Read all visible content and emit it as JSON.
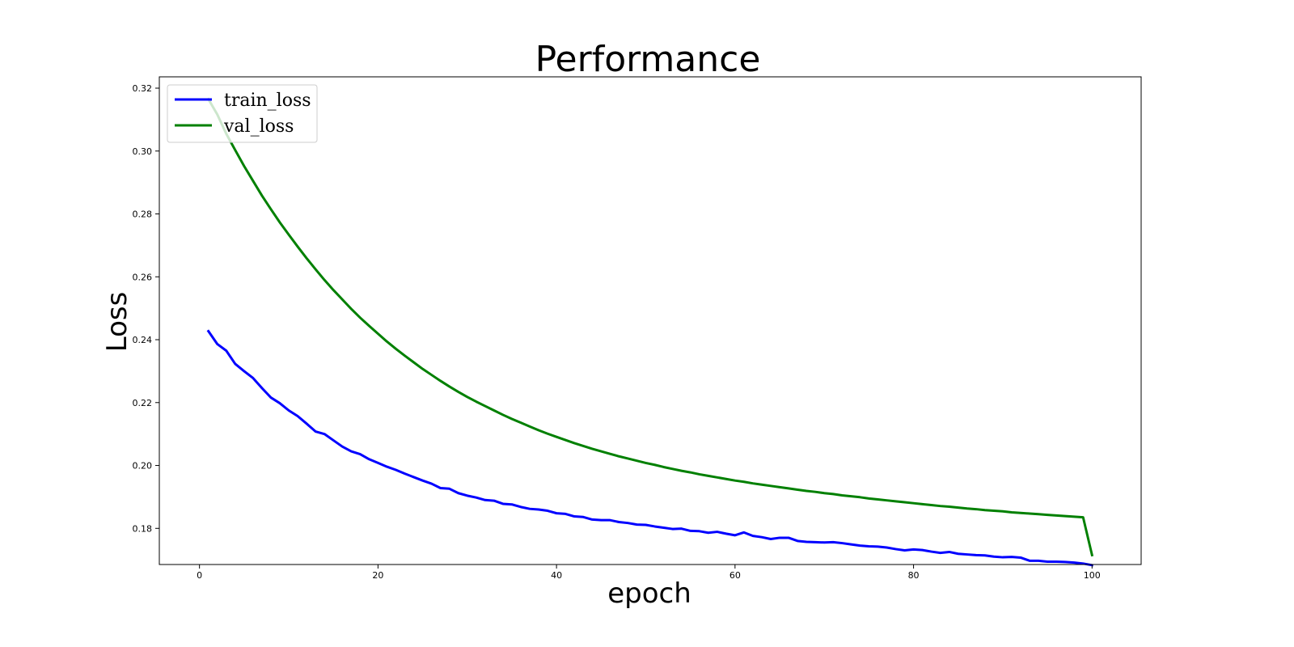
{
  "chart_data": {
    "type": "line",
    "title": "Performance",
    "xlabel": "epoch",
    "ylabel": "Loss",
    "xlim": [
      -4.5,
      105.5
    ],
    "ylim": [
      0.1685,
      0.3236
    ],
    "xticks": [
      "0",
      "20",
      "40",
      "60",
      "80",
      "100"
    ],
    "yticks": [
      "0.18",
      "0.20",
      "0.22",
      "0.24",
      "0.26",
      "0.28",
      "0.30",
      "0.32"
    ],
    "legend_position": "upper-left",
    "grid": false,
    "series": [
      {
        "name": "train_loss",
        "color": "#0000ff",
        "x": [
          1,
          2,
          3,
          4,
          5,
          6,
          7,
          8,
          9,
          10,
          11,
          12,
          13,
          14,
          15,
          16,
          17,
          18,
          19,
          20,
          21,
          22,
          23,
          24,
          25,
          26,
          27,
          28,
          29,
          30,
          31,
          32,
          33,
          34,
          35,
          36,
          37,
          38,
          39,
          40,
          41,
          42,
          43,
          44,
          45,
          46,
          47,
          48,
          49,
          50,
          51,
          52,
          53,
          54,
          55,
          56,
          57,
          58,
          59,
          60,
          61,
          62,
          63,
          64,
          65,
          66,
          67,
          68,
          69,
          70,
          71,
          72,
          73,
          74,
          75,
          76,
          77,
          78,
          79,
          80,
          81,
          82,
          83,
          84,
          85,
          86,
          87,
          88,
          89,
          90,
          91,
          92,
          93,
          94,
          95,
          96,
          97,
          98,
          99,
          100
        ],
        "values": [
          0.2427,
          0.2386,
          0.2365,
          0.2323,
          0.23,
          0.2278,
          0.2246,
          0.2216,
          0.2198,
          0.2175,
          0.2157,
          0.2133,
          0.2108,
          0.21,
          0.208,
          0.206,
          0.2045,
          0.2036,
          0.202,
          0.2008,
          0.1996,
          0.1986,
          0.1974,
          0.1963,
          0.1952,
          0.1942,
          0.1928,
          0.1926,
          0.1912,
          0.1904,
          0.1898,
          0.189,
          0.1888,
          0.1878,
          0.1876,
          0.1868,
          0.1862,
          0.186,
          0.1856,
          0.1848,
          0.1846,
          0.1838,
          0.1836,
          0.1828,
          0.1826,
          0.1826,
          0.182,
          0.1817,
          0.1812,
          0.1811,
          0.1806,
          0.1802,
          0.1798,
          0.1799,
          0.1792,
          0.1791,
          0.1786,
          0.1789,
          0.1783,
          0.1778,
          0.1787,
          0.1776,
          0.1772,
          0.1766,
          0.177,
          0.177,
          0.176,
          0.1757,
          0.1756,
          0.1755,
          0.1756,
          0.1753,
          0.1749,
          0.1745,
          0.1743,
          0.1742,
          0.1739,
          0.1734,
          0.173,
          0.1733,
          0.1731,
          0.1726,
          0.1722,
          0.1725,
          0.1719,
          0.1717,
          0.1715,
          0.1714,
          0.171,
          0.1708,
          0.1709,
          0.1707,
          0.1697,
          0.1697,
          0.1694,
          0.1694,
          0.1693,
          0.1691,
          0.1688,
          0.1683
        ]
      },
      {
        "name": "val_loss",
        "color": "#008000",
        "x": [
          1,
          2,
          3,
          4,
          5,
          6,
          7,
          8,
          9,
          10,
          11,
          12,
          13,
          14,
          15,
          16,
          17,
          18,
          19,
          20,
          21,
          22,
          23,
          24,
          25,
          26,
          27,
          28,
          29,
          30,
          31,
          32,
          33,
          34,
          35,
          36,
          37,
          38,
          39,
          40,
          41,
          42,
          43,
          44,
          45,
          46,
          47,
          48,
          49,
          50,
          51,
          52,
          53,
          54,
          55,
          56,
          57,
          58,
          59,
          60,
          61,
          62,
          63,
          64,
          65,
          66,
          67,
          68,
          69,
          70,
          71,
          72,
          73,
          74,
          75,
          76,
          77,
          78,
          79,
          80,
          81,
          82,
          83,
          84,
          85,
          86,
          87,
          88,
          89,
          90,
          91,
          92,
          93,
          94,
          95,
          96,
          97,
          98,
          99,
          100
        ],
        "values": [
          0.3165,
          0.3116,
          0.3055,
          0.3003,
          0.2952,
          0.2905,
          0.2858,
          0.2815,
          0.2773,
          0.2734,
          0.2696,
          0.2659,
          0.2624,
          0.259,
          0.2558,
          0.2528,
          0.2498,
          0.247,
          0.2444,
          0.2419,
          0.2394,
          0.2371,
          0.2349,
          0.2328,
          0.2307,
          0.2288,
          0.2269,
          0.2251,
          0.2234,
          0.2218,
          0.2203,
          0.2189,
          0.2175,
          0.2161,
          0.2148,
          0.2136,
          0.2124,
          0.2112,
          0.2101,
          0.2091,
          0.2081,
          0.2071,
          0.2062,
          0.2053,
          0.2045,
          0.2037,
          0.2029,
          0.2022,
          0.2015,
          0.2008,
          0.2002,
          0.1995,
          0.1989,
          0.1983,
          0.1978,
          0.1972,
          0.1967,
          0.1962,
          0.1957,
          0.1952,
          0.1948,
          0.1943,
          0.1939,
          0.1935,
          0.1931,
          0.1927,
          0.1923,
          0.1919,
          0.1916,
          0.1912,
          0.1909,
          0.1905,
          0.1902,
          0.1899,
          0.1895,
          0.1892,
          0.1889,
          0.1886,
          0.1883,
          0.188,
          0.1877,
          0.1874,
          0.1871,
          0.1869,
          0.1866,
          0.1863,
          0.1861,
          0.1858,
          0.1856,
          0.1854,
          0.1851,
          0.1849,
          0.1847,
          0.1845,
          0.1843,
          0.1841,
          0.1839,
          0.1837,
          0.1835,
          0.1715
        ]
      }
    ]
  }
}
